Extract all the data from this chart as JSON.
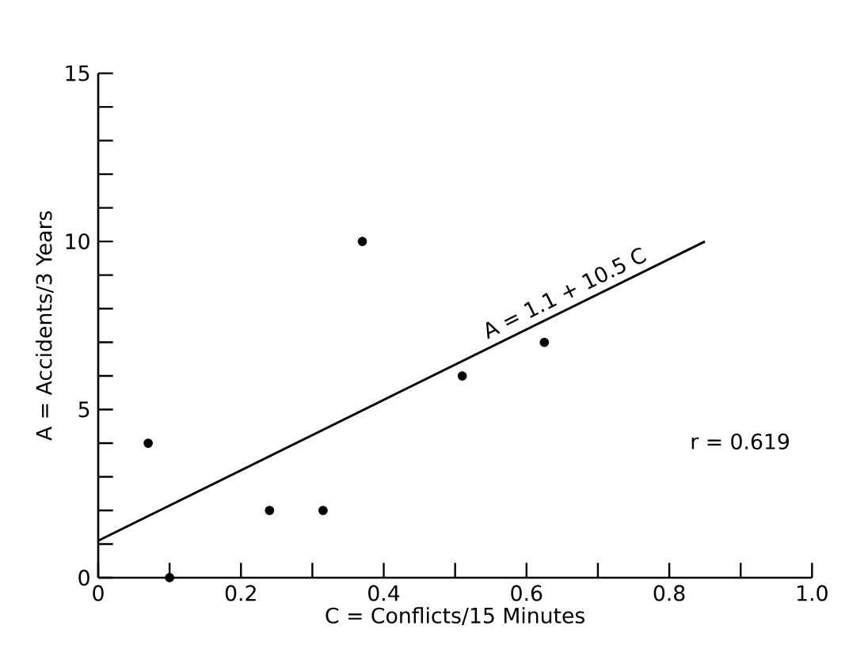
{
  "chart_data": {
    "type": "scatter",
    "xlabel": "C = Conflicts/15 Minutes",
    "ylabel": "A = Accidents/3 Years",
    "xlim": [
      0,
      1.0
    ],
    "ylim": [
      0,
      15
    ],
    "xticks": [
      0,
      {
        "value": 0.1,
        "label": null
      },
      0.2,
      {
        "value": 0.3,
        "label": null
      },
      0.4,
      {
        "value": 0.5,
        "label": null
      },
      0.6,
      {
        "value": 0.7,
        "label": null
      },
      0.8,
      {
        "value": 0.9,
        "label": null
      },
      {
        "value": 1,
        "label": "1.0"
      }
    ],
    "yticks": [
      0,
      {
        "value": 1,
        "label": null
      },
      {
        "value": 2,
        "label": null
      },
      {
        "value": 3,
        "label": null
      },
      {
        "value": 4,
        "label": null
      },
      5,
      {
        "value": 6,
        "label": null
      },
      {
        "value": 7,
        "label": null
      },
      {
        "value": 8,
        "label": null
      },
      {
        "value": 9,
        "label": null
      },
      10,
      {
        "value": 11,
        "label": null
      },
      {
        "value": 12,
        "label": null
      },
      {
        "value": 13,
        "label": null
      },
      {
        "value": 14,
        "label": null
      },
      15
    ],
    "series": [
      {
        "color": "#000000",
        "marker": "circle",
        "x": [
          0.07,
          0.1,
          0.24,
          0.315,
          0.37,
          0.51,
          0.625
        ],
        "values": [
          4,
          0,
          2,
          2,
          10,
          6,
          7
        ]
      },
      {
        "type": "line",
        "color": "#000000",
        "marker": "none",
        "line_style": "solid",
        "x": [
          0,
          0.85
        ],
        "values": [
          1.1,
          10.0
        ]
      }
    ],
    "annotations": [
      "A = 1.1 + 10.5 C",
      "r = 0.619"
    ]
  }
}
